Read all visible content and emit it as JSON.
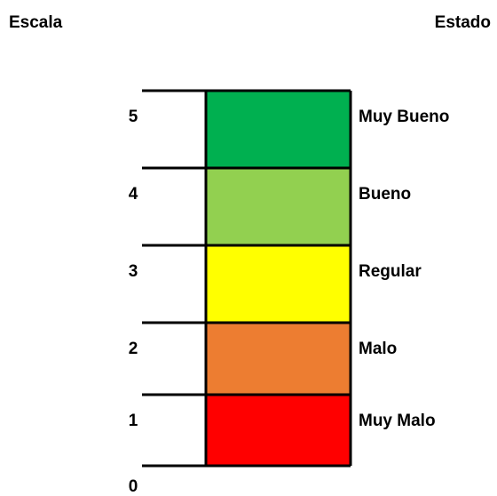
{
  "header": {
    "scale_title": "Escala",
    "state_title": "Estado"
  },
  "levels": [
    {
      "scale": 5,
      "state": "Muy Bueno",
      "color": "#00b050"
    },
    {
      "scale": 4,
      "state": "Bueno",
      "color": "#92d050"
    },
    {
      "scale": 3,
      "state": "Regular",
      "color": "#ffff00"
    },
    {
      "scale": 2,
      "state": "Malo",
      "color": "#ed7d31"
    },
    {
      "scale": 1,
      "state": "Muy Malo",
      "color": "#ff0000"
    }
  ],
  "bottom": {
    "scale": 0
  }
}
